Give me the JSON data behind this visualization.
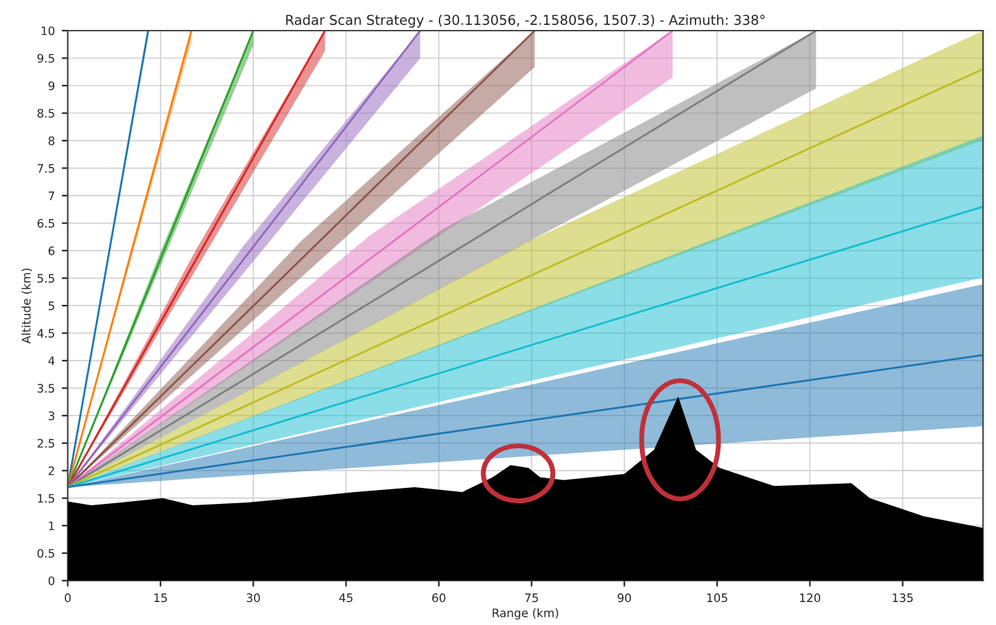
{
  "chart_data": {
    "type": "line",
    "title": "Radar Scan Strategy - (30.113056, -2.158056, 1507.3) - Azimuth: 338°",
    "xlabel": "Range (km)",
    "ylabel": "Altitude (km)",
    "xlim": [
      0,
      148
    ],
    "xticks": [
      0,
      15,
      30,
      45,
      60,
      75,
      90,
      105,
      120,
      135
    ],
    "ylim": [
      0,
      10
    ],
    "yticks": [
      0,
      0.5,
      1,
      1.5,
      2,
      2.5,
      3,
      3.5,
      4,
      4.5,
      5,
      5.5,
      6,
      6.5,
      7,
      7.5,
      8,
      8.5,
      9,
      9.5,
      10
    ],
    "grid": true,
    "marker": "none",
    "line_style": "solid",
    "series": [
      {
        "color": "#1f77b4",
        "x": [
          0,
          6.5,
          13
        ],
        "values": [
          1.7,
          5.85,
          10
        ],
        "lower": [
          1.7,
          5.78,
          9.87
        ],
        "upper": [
          1.7,
          5.92,
          10
        ]
      },
      {
        "color": "#ff7f0e",
        "x": [
          0,
          10,
          20
        ],
        "values": [
          1.7,
          5.85,
          10
        ],
        "lower": [
          1.7,
          5.76,
          9.81
        ],
        "upper": [
          1.7,
          5.94,
          10
        ]
      },
      {
        "color": "#2ca02c",
        "x": [
          0,
          15,
          30
        ],
        "values": [
          1.7,
          5.85,
          10
        ],
        "lower": [
          1.7,
          5.72,
          9.73
        ],
        "upper": [
          1.7,
          5.98,
          10
        ]
      },
      {
        "color": "#d62728",
        "x": [
          0,
          20.8,
          41.6
        ],
        "values": [
          1.7,
          5.85,
          10
        ],
        "lower": [
          1.7,
          5.67,
          9.63
        ],
        "upper": [
          1.7,
          6.03,
          10
        ]
      },
      {
        "color": "#9467bd",
        "x": [
          0,
          28.5,
          57
        ],
        "values": [
          1.7,
          5.85,
          10
        ],
        "lower": [
          1.7,
          5.6,
          9.5
        ],
        "upper": [
          1.7,
          6.1,
          10
        ]
      },
      {
        "color": "#8c564b",
        "x": [
          0,
          37.8,
          75.5
        ],
        "values": [
          1.7,
          5.85,
          10
        ],
        "lower": [
          1.7,
          5.52,
          9.34
        ],
        "upper": [
          1.7,
          6.18,
          10
        ]
      },
      {
        "color": "#e377c2",
        "x": [
          0,
          48.9,
          97.8
        ],
        "values": [
          1.7,
          5.85,
          10
        ],
        "lower": [
          1.7,
          5.42,
          9.15
        ],
        "upper": [
          1.7,
          6.28,
          10
        ]
      },
      {
        "color": "#7f7f7f",
        "x": [
          0,
          60.5,
          121
        ],
        "values": [
          1.7,
          5.85,
          10
        ],
        "lower": [
          1.7,
          5.32,
          8.95
        ],
        "upper": [
          1.7,
          6.38,
          10
        ]
      },
      {
        "color": "#bcbd22",
        "x": [
          0,
          74,
          148
        ],
        "values": [
          1.7,
          5.5,
          9.3
        ],
        "lower": [
          1.7,
          4.86,
          8.01
        ],
        "upper": [
          1.7,
          6.14,
          10
        ]
      },
      {
        "color": "#17becf",
        "x": [
          0,
          74,
          148
        ],
        "values": [
          1.7,
          4.25,
          6.8
        ],
        "lower": [
          1.7,
          3.61,
          5.51
        ],
        "upper": [
          1.7,
          4.89,
          8.09
        ]
      },
      {
        "color": "#1f77b4",
        "x": [
          0,
          74,
          148
        ],
        "values": [
          1.7,
          2.9,
          4.1
        ],
        "lower": [
          1.7,
          2.26,
          2.81
        ],
        "upper": [
          1.7,
          3.54,
          5.39
        ]
      },
      {
        "type": "area",
        "color": "#000000",
        "x": [
          0,
          3.8,
          8.6,
          15.4,
          20.2,
          29,
          36.6,
          46.4,
          56.1,
          63.8,
          68.7,
          71.6,
          74.5,
          76.4,
          80.2,
          90,
          94.8,
          98.7,
          101.6,
          105.4,
          114.2,
          126.7,
          129.7,
          138.4,
          148
        ],
        "values": [
          1.44,
          1.37,
          1.42,
          1.5,
          1.37,
          1.42,
          1.5,
          1.61,
          1.7,
          1.61,
          1.88,
          2.1,
          2.05,
          1.88,
          1.83,
          1.94,
          2.38,
          3.35,
          2.38,
          2.05,
          1.72,
          1.77,
          1.5,
          1.17,
          0.96
        ]
      }
    ]
  }
}
